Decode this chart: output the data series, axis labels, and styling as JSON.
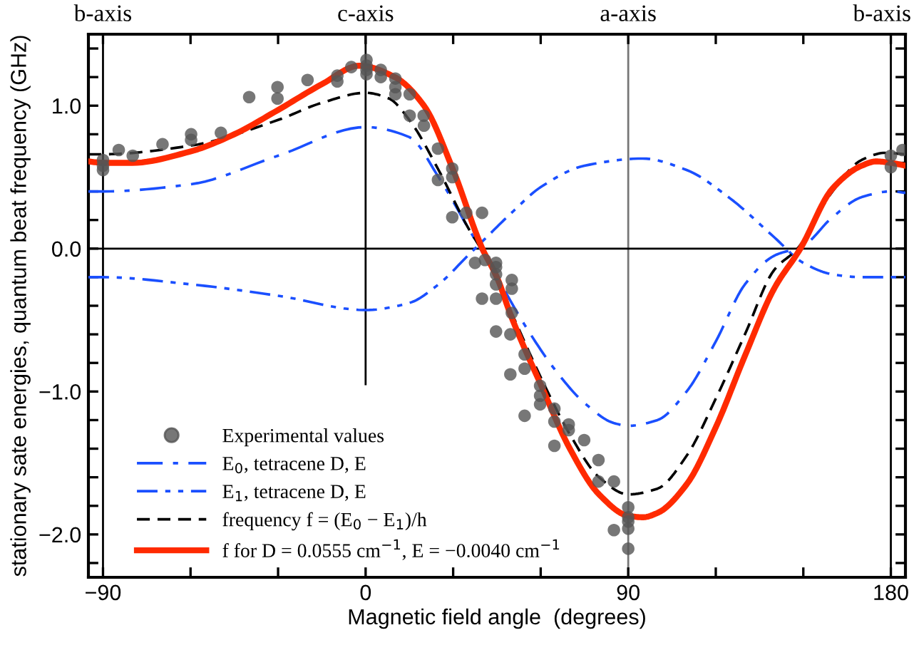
{
  "chart_data": {
    "type": "line",
    "xlabel": "Magnetic field angle  (degrees)",
    "ylabel": "stationary sate energies, quantum beat frequency (GHz)",
    "xlim": [
      -95,
      185
    ],
    "ylim": [
      -2.3,
      1.5
    ],
    "xticks": [
      {
        "value": -90,
        "label": "−90"
      },
      {
        "value": -60,
        "label": null
      },
      {
        "value": -30,
        "label": null
      },
      0,
      {
        "value": 30,
        "label": null
      },
      {
        "value": 60,
        "label": null
      },
      90,
      {
        "value": 120,
        "label": null
      },
      {
        "value": 150,
        "label": null
      },
      180
    ],
    "yticks": [
      {
        "value": -2.2,
        "label": null
      },
      {
        "value": -2.0,
        "label": "−2.0"
      },
      {
        "value": -1.8,
        "label": null
      },
      {
        "value": -1.6,
        "label": null
      },
      {
        "value": -1.4,
        "label": null
      },
      {
        "value": -1.2,
        "label": null
      },
      {
        "value": -1.0,
        "label": "−1.0"
      },
      {
        "value": -0.8,
        "label": null
      },
      {
        "value": -0.6,
        "label": null
      },
      {
        "value": -0.4,
        "label": null
      },
      {
        "value": -0.2,
        "label": null
      },
      {
        "value": 0.0,
        "label": "0.0"
      },
      {
        "value": 0.2,
        "label": null
      },
      {
        "value": 0.4,
        "label": null
      },
      {
        "value": 0.6,
        "label": null
      },
      {
        "value": 0.8,
        "label": null
      },
      {
        "value": 1.0,
        "label": "1.0"
      },
      {
        "value": 1.2,
        "label": null
      },
      {
        "value": 1.4,
        "label": null
      }
    ],
    "grid": false,
    "legend": "bottom left",
    "ref_lines": [
      {
        "axis": "x",
        "value": -90,
        "label": "b-axis",
        "color": "#000000"
      },
      {
        "axis": "x",
        "value": 0,
        "label": "c-axis",
        "color": "#000000"
      },
      {
        "axis": "x",
        "value": 90,
        "label": "a-axis",
        "color": "#777777"
      },
      {
        "axis": "x",
        "value": 180,
        "label": "b-axis",
        "color": "#000000"
      },
      {
        "axis": "y",
        "value": 0,
        "color": "#000000"
      }
    ],
    "series": [
      {
        "name": "Experimental values",
        "type": "scatter",
        "marker": "circle",
        "color": "#555555",
        "x": [
          -90,
          -90,
          -90,
          -84.6,
          -79.8,
          -69.6,
          -59.8,
          -59.8,
          -49.6,
          -39.9,
          -30.2,
          -30.2,
          -19.9,
          -9.7,
          -9.7,
          -4.9,
          0.3,
          0.3,
          0.3,
          0.3,
          5.2,
          5.2,
          10.2,
          10.2,
          10.2,
          15.1,
          15.1,
          19.9,
          20,
          24.8,
          24.8,
          29.7,
          29.7,
          29.7,
          34.5,
          39.9,
          37.5,
          40.9,
          44.7,
          44.7,
          44.7,
          39.9,
          44.7,
          44.7,
          50.1,
          50.1,
          50.1,
          44.7,
          49.6,
          49.6,
          54.5,
          54.5,
          54.5,
          59.8,
          59.8,
          59.8,
          64.7,
          64.7,
          64.7,
          69.6,
          69.6,
          74.9,
          79.8,
          79.8,
          85.1,
          85.1,
          90,
          90,
          90,
          90,
          90,
          180,
          180,
          184
        ],
        "values": [
          0.62,
          0.58,
          0.55,
          0.69,
          0.65,
          0.73,
          0.8,
          0.76,
          0.81,
          1.06,
          1.13,
          1.05,
          1.18,
          1.21,
          1.17,
          1.27,
          1.32,
          1.28,
          1.25,
          1.22,
          1.25,
          1.2,
          1.19,
          1.13,
          1.08,
          1.08,
          0.93,
          0.93,
          0.86,
          0.7,
          0.48,
          0.56,
          0.5,
          0.22,
          0.25,
          0.25,
          -0.1,
          -0.08,
          -0.13,
          -0.18,
          -0.25,
          -0.35,
          -0.35,
          -0.1,
          -0.22,
          -0.28,
          -0.45,
          -0.58,
          -0.6,
          -0.88,
          -0.74,
          -0.84,
          -1.17,
          -0.96,
          -1.03,
          -1.09,
          -1.12,
          -1.21,
          -1.38,
          -1.23,
          -1.27,
          -1.34,
          -1.48,
          -1.63,
          -1.63,
          -1.97,
          -1.81,
          -1.88,
          -1.91,
          -1.96,
          -2.1,
          0.65,
          0.57,
          0.69
        ]
      },
      {
        "name": "E$_{0}$, tetracene D, E",
        "line_style": "dashdot",
        "color": "#1a4fff",
        "x": [
          -95,
          -90,
          -60,
          -30,
          0,
          15,
          25,
          35,
          45,
          55,
          65,
          75,
          85,
          90,
          100,
          110,
          120,
          130,
          140,
          150,
          160,
          170,
          180,
          185
        ],
        "values": [
          0.4,
          0.4,
          0.45,
          0.65,
          0.85,
          0.78,
          0.5,
          0.15,
          -0.2,
          -0.55,
          -0.85,
          -1.08,
          -1.22,
          -1.24,
          -1.2,
          -1.0,
          -0.65,
          -0.25,
          -0.05,
          0.02,
          0.22,
          0.36,
          0.4,
          0.39
        ]
      },
      {
        "name": "E$_{1}$, tetracene D, E",
        "line_style": "dashdotdot",
        "color": "#1a4fff",
        "x": [
          -95,
          -90,
          -60,
          -30,
          0,
          15,
          25,
          35,
          40,
          50,
          60,
          75,
          95,
          110,
          125,
          140,
          150,
          160,
          170,
          180,
          185
        ],
        "values": [
          -0.2,
          -0.2,
          -0.25,
          -0.33,
          -0.43,
          -0.38,
          -0.25,
          -0.05,
          0.05,
          0.25,
          0.43,
          0.58,
          0.63,
          0.55,
          0.35,
          0.08,
          -0.1,
          -0.18,
          -0.2,
          -0.2,
          -0.2
        ]
      },
      {
        "name": "frequency f = (E$_{0}$ − E$_{1}$)/h",
        "line_style": "dashed",
        "color": "#000000",
        "x": [
          -95,
          -90,
          -60,
          -30,
          -15,
          0,
          8,
          15,
          25,
          35,
          40,
          50,
          60,
          70,
          80,
          90,
          100,
          110,
          120,
          130,
          140,
          148,
          160,
          170,
          178,
          185
        ],
        "values": [
          0.66,
          0.66,
          0.72,
          0.9,
          1.02,
          1.09,
          1.05,
          0.9,
          0.55,
          0.15,
          -0.02,
          -0.45,
          -0.9,
          -1.3,
          -1.6,
          -1.72,
          -1.68,
          -1.45,
          -1.05,
          -0.6,
          -0.15,
          0.0,
          0.4,
          0.62,
          0.67,
          0.66
        ]
      },
      {
        "name": "f for D = 0.0555 cm$^{−1}$, E = −0.0040 cm$^{−1}$",
        "line_style": "solid",
        "color": "#ff2a00",
        "x": [
          -95,
          -90,
          -80,
          -60,
          -45,
          -30,
          -15,
          -2,
          10,
          20,
          30,
          40,
          45,
          50,
          60,
          70,
          80,
          90,
          95,
          100,
          110,
          120,
          130,
          140,
          149,
          160,
          170,
          175,
          180,
          185
        ],
        "values": [
          0.61,
          0.6,
          0.6,
          0.68,
          0.8,
          0.97,
          1.15,
          1.28,
          1.2,
          1.0,
          0.55,
          0.0,
          -0.2,
          -0.48,
          -0.95,
          -1.4,
          -1.72,
          -1.87,
          -1.88,
          -1.85,
          -1.65,
          -1.25,
          -0.75,
          -0.28,
          0.0,
          0.42,
          0.58,
          0.61,
          0.6,
          0.58
        ]
      }
    ]
  }
}
